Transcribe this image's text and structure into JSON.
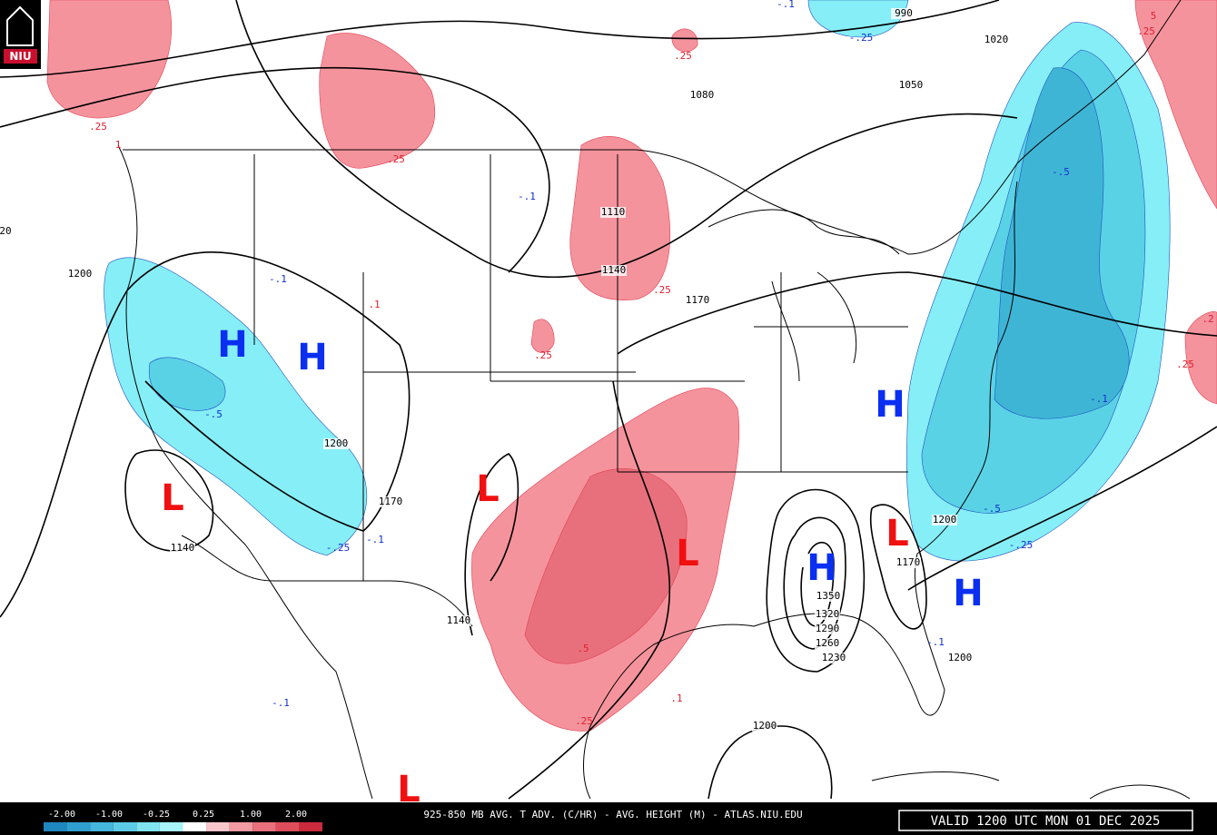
{
  "logo": "NIU",
  "height_labels": [
    "990",
    "1020",
    "1050",
    "1080",
    "1110",
    "1140",
    "1170",
    "1200",
    "1200",
    "1170",
    "1140",
    "1140",
    "1200",
    "1170",
    "1350",
    "1320",
    "1290",
    "1260",
    "1230",
    "1200",
    "1200",
    "20"
  ],
  "warm_advection_labels": [
    ".25",
    ".25",
    "1",
    ".25",
    ".1",
    ".25",
    ".25",
    ".5",
    ".25",
    ".1",
    "5",
    ".25",
    ".2",
    ".25"
  ],
  "cold_advection_labels": [
    "-.1",
    "-.25",
    "-.1",
    "-.1",
    "-.5",
    "-.25",
    "-.1",
    "-.5",
    "-.1",
    "-.5",
    "-.25",
    "-.1",
    "-.1"
  ],
  "highs": [
    "H",
    "H",
    "H",
    "H",
    "H"
  ],
  "lows": [
    "L",
    "L",
    "L",
    "L",
    "L"
  ],
  "legend": {
    "labels": [
      "-2.00",
      "-1.00",
      "-0.25",
      "0.25",
      "1.00",
      "2.00"
    ],
    "colors": [
      "#1f87c0",
      "#2f9fcf",
      "#45b6dc",
      "#5ccbe6",
      "#7fe3f0",
      "#a6f3f8",
      "#ffffff",
      "#f9c6cb",
      "#f29aa3",
      "#e9707c",
      "#dd4d5c",
      "#c92a3c"
    ]
  },
  "footer": {
    "title": "925-850 MB AVG. T ADV. (C/HR) - AVG. HEIGHT (M) - ATLAS.NIU.EDU",
    "valid": "VALID 1200 UTC MON 01 DEC 2025"
  }
}
